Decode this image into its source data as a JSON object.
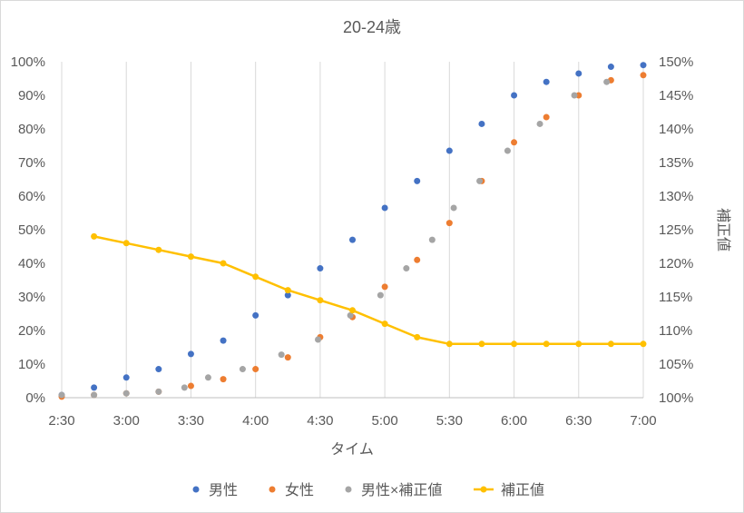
{
  "chart_data": {
    "type": "scatter",
    "title": "20-24歳",
    "xlabel": "タイム",
    "ylabel": "",
    "y2label": "補正値",
    "x_ticks": [
      "2:30",
      "3:00",
      "3:30",
      "4:00",
      "4:30",
      "5:00",
      "5:30",
      "6:00",
      "6:30",
      "7:00"
    ],
    "x_range_minutes": [
      150,
      420
    ],
    "y_ticks": [
      "0%",
      "10%",
      "20%",
      "30%",
      "40%",
      "50%",
      "60%",
      "70%",
      "80%",
      "90%",
      "100%"
    ],
    "ylim": [
      0,
      100
    ],
    "y2_ticks": [
      "100%",
      "105%",
      "110%",
      "115%",
      "120%",
      "125%",
      "130%",
      "135%",
      "140%",
      "145%",
      "150%"
    ],
    "y2lim": [
      100,
      150
    ],
    "grid": "vertical",
    "legend_position": "bottom",
    "series": [
      {
        "name": "男性",
        "axis": "left",
        "kind": "scatter",
        "color": "#4472C4",
        "points": [
          [
            150,
            0.8
          ],
          [
            165,
            3
          ],
          [
            180,
            6
          ],
          [
            195,
            8.5
          ],
          [
            210,
            13
          ],
          [
            225,
            17
          ],
          [
            240,
            24.5
          ],
          [
            255,
            30.5
          ],
          [
            270,
            38.5
          ],
          [
            285,
            47
          ],
          [
            300,
            56.5
          ],
          [
            315,
            64.5
          ],
          [
            330,
            73.5
          ],
          [
            345,
            81.5
          ],
          [
            360,
            90
          ],
          [
            375,
            94
          ],
          [
            390,
            96.5
          ],
          [
            405,
            98.5
          ],
          [
            420,
            99
          ]
        ]
      },
      {
        "name": "女性",
        "axis": "left",
        "kind": "scatter",
        "color": "#ED7D31",
        "points": [
          [
            150,
            0.3
          ],
          [
            165,
            0.8
          ],
          [
            180,
            1.3
          ],
          [
            195,
            1.8
          ],
          [
            210,
            3.5
          ],
          [
            225,
            5.5
          ],
          [
            240,
            8.5
          ],
          [
            255,
            12
          ],
          [
            270,
            18
          ],
          [
            285,
            24
          ],
          [
            300,
            33
          ],
          [
            315,
            41
          ],
          [
            330,
            52
          ],
          [
            345,
            64.5
          ],
          [
            360,
            76
          ],
          [
            375,
            83.5
          ],
          [
            390,
            90
          ],
          [
            405,
            94.5
          ],
          [
            420,
            96
          ]
        ]
      },
      {
        "name": "男性×補正値",
        "axis": "left",
        "kind": "scatter",
        "color": "#A5A5A5",
        "points": [
          [
            150,
            0.8
          ],
          [
            165,
            0.8
          ],
          [
            180,
            1.3
          ],
          [
            195,
            1.8
          ],
          [
            207,
            3
          ],
          [
            218,
            6
          ],
          [
            234,
            8.5
          ],
          [
            252,
            12.8
          ],
          [
            269,
            17.3
          ],
          [
            284,
            24.5
          ],
          [
            298,
            30.5
          ],
          [
            310,
            38.5
          ],
          [
            322,
            47
          ],
          [
            332,
            56.5
          ],
          [
            344,
            64.5
          ],
          [
            357,
            73.5
          ],
          [
            372,
            81.5
          ],
          [
            388,
            90
          ],
          [
            403,
            94
          ]
        ]
      },
      {
        "name": "補正値",
        "axis": "right",
        "kind": "line",
        "color": "#FFC000",
        "points": [
          [
            165,
            124
          ],
          [
            180,
            123
          ],
          [
            195,
            122
          ],
          [
            210,
            121
          ],
          [
            225,
            120
          ],
          [
            240,
            118
          ],
          [
            255,
            116
          ],
          [
            270,
            114.5
          ],
          [
            285,
            113
          ],
          [
            300,
            111
          ],
          [
            315,
            109
          ],
          [
            330,
            108
          ],
          [
            345,
            108
          ],
          [
            360,
            108
          ],
          [
            375,
            108
          ],
          [
            390,
            108
          ],
          [
            405,
            108
          ],
          [
            420,
            108
          ]
        ]
      }
    ]
  }
}
